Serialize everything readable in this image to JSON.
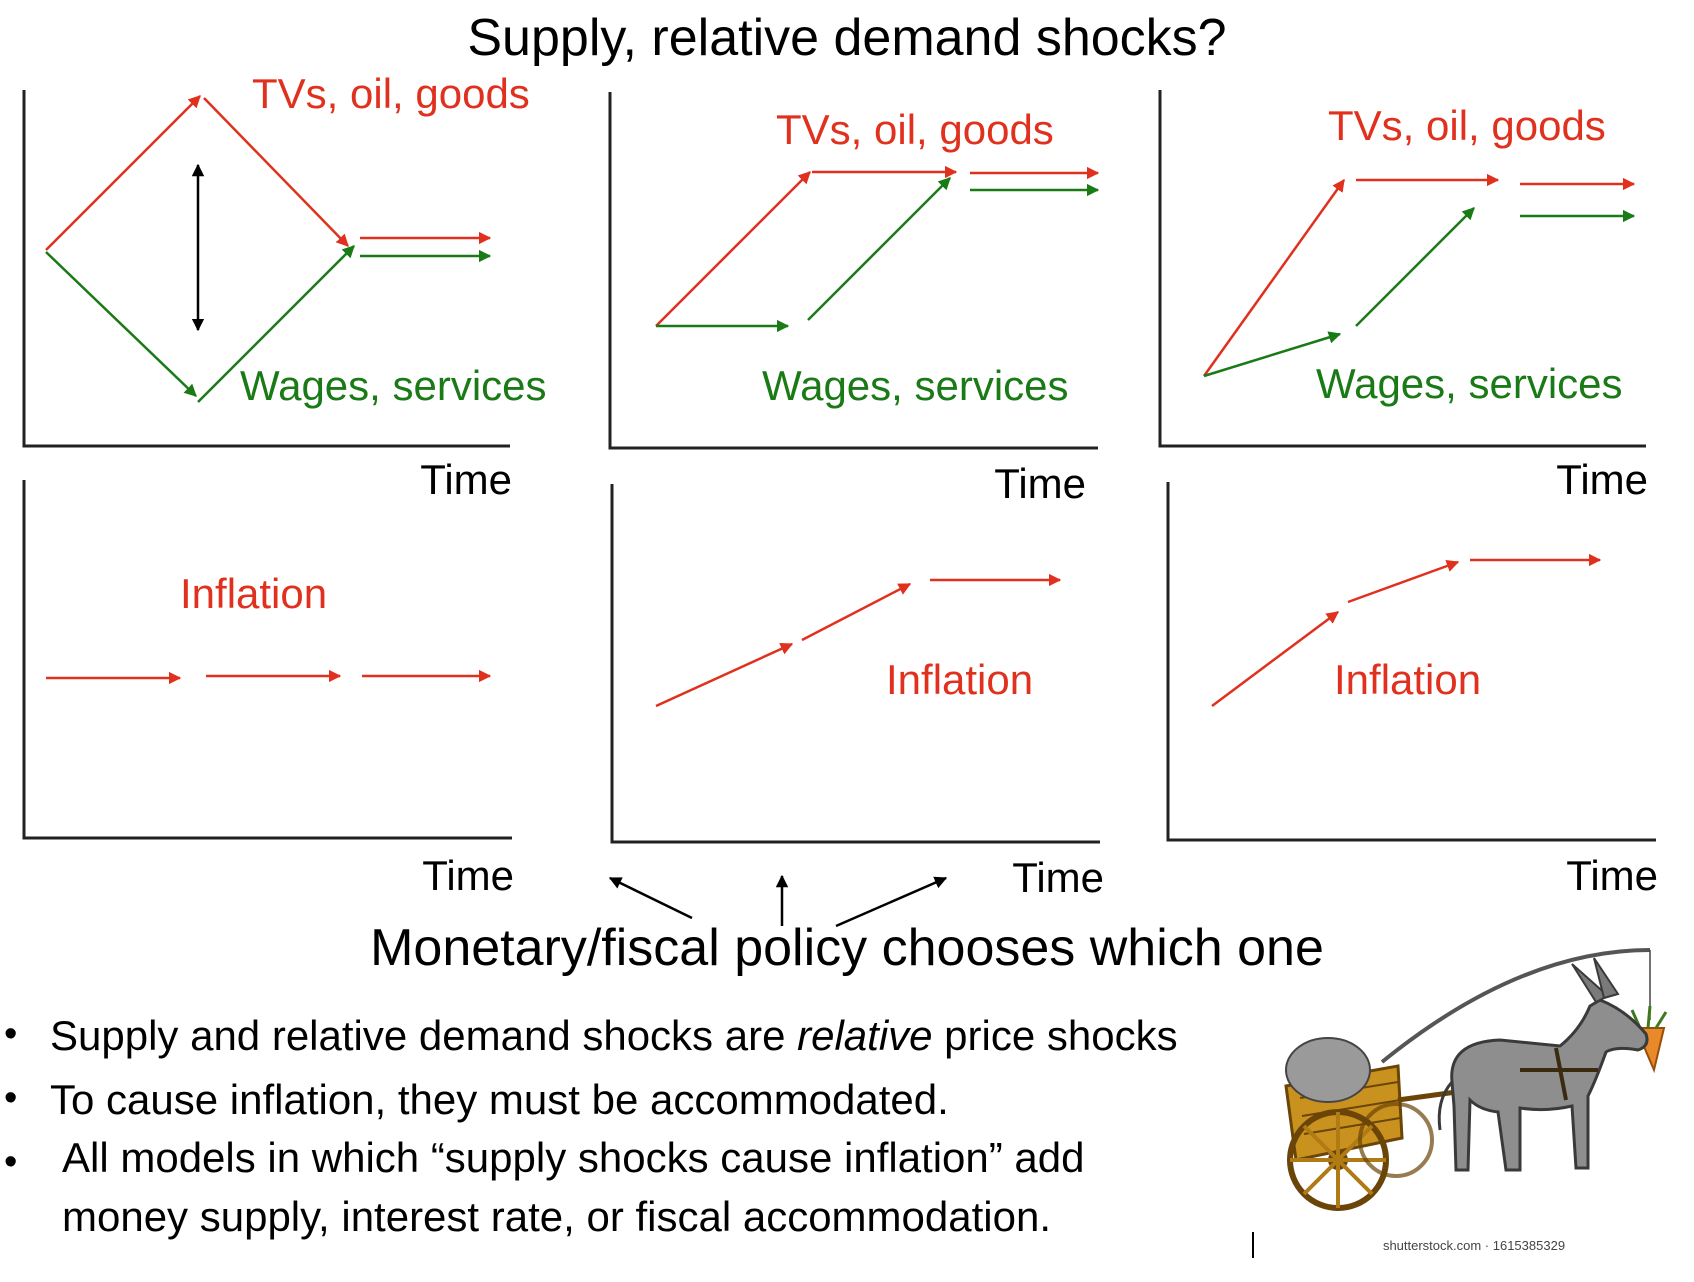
{
  "title": "Supply, relative demand shocks?",
  "caption": "Monetary/fiscal policy chooses which one",
  "colors": {
    "red": "#e0301e",
    "green": "#1a7a16",
    "black": "#000000",
    "axis": "#222222"
  },
  "labels": {
    "goods": "TVs, oil, goods",
    "wages": "Wages, services",
    "inflation": "Inflation",
    "time": "Time"
  },
  "bullets": {
    "b1_before": "Supply and relative demand shocks are ",
    "b1_italic": "relative",
    "b1_after": " price shocks",
    "b2": "To cause inflation, they must be accommodated.",
    "b3": "All models in which “supply shocks cause inflation” add money supply, interest rate, or fiscal accommodation."
  },
  "image": {
    "description_icon": "donkey-cart-carrot-icon",
    "credit": "shutterstock.com · 1615385329"
  }
}
